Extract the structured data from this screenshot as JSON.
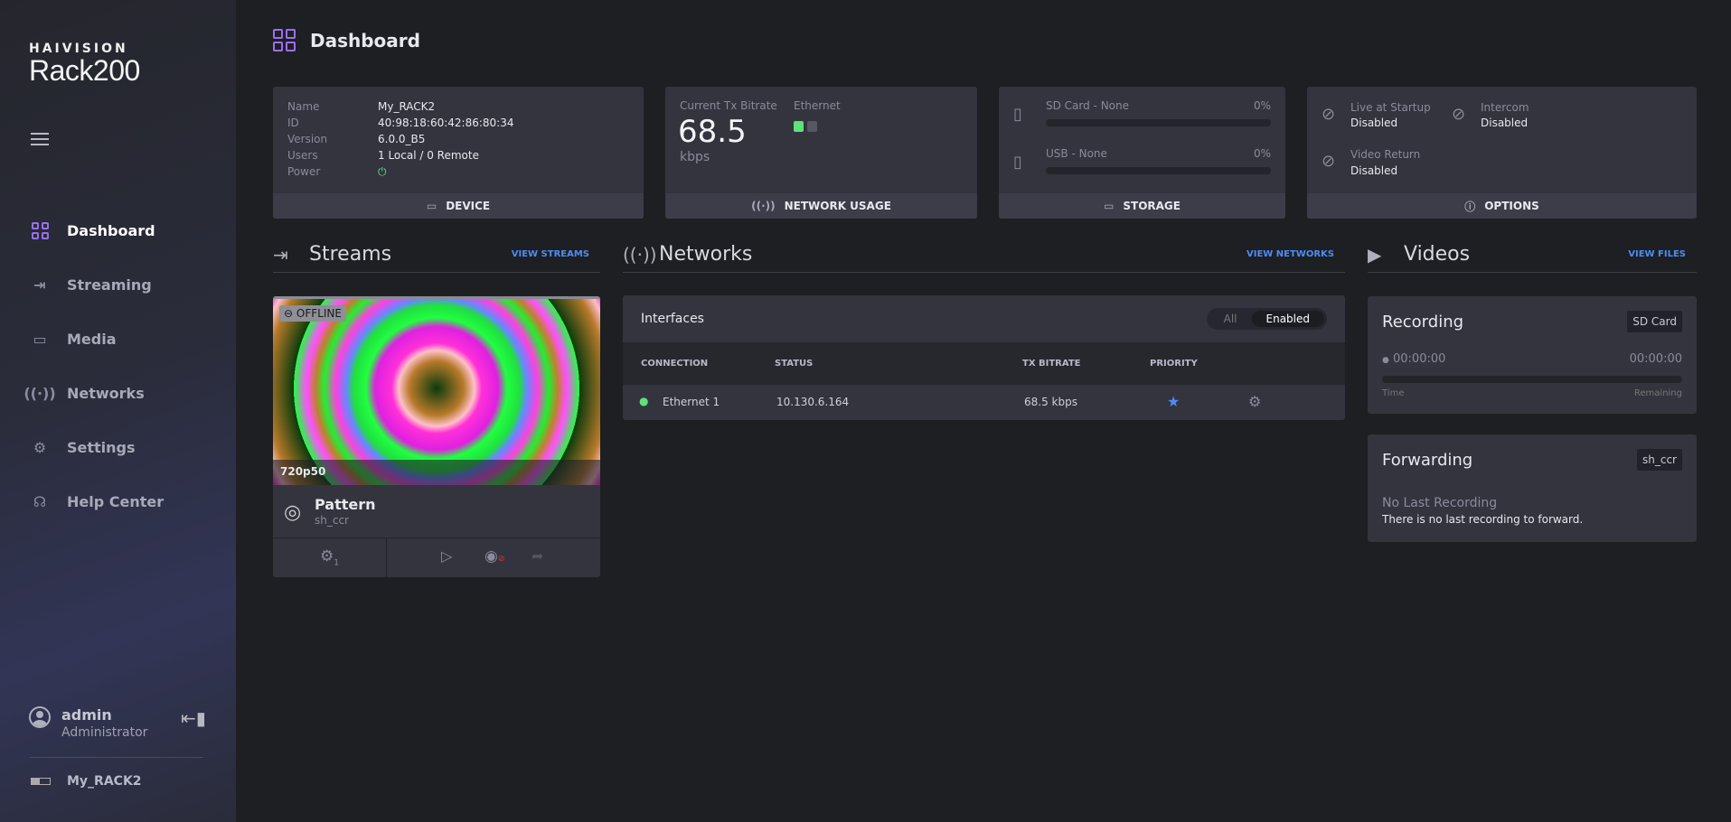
{
  "brand": {
    "company": "HAIVISION",
    "product": "Rack200"
  },
  "sidebar": {
    "items": [
      {
        "label": "Dashboard",
        "icon": "dashboard-icon",
        "active": true
      },
      {
        "label": "Streaming",
        "icon": "streaming-icon"
      },
      {
        "label": "Media",
        "icon": "media-icon"
      },
      {
        "label": "Networks",
        "icon": "antenna-icon"
      },
      {
        "label": "Settings",
        "icon": "gear-icon"
      },
      {
        "label": "Help Center",
        "icon": "headset-icon"
      }
    ],
    "user": {
      "name": "admin",
      "role": "Administrator"
    },
    "device": "My_RACK2"
  },
  "page": {
    "title": "Dashboard"
  },
  "device_card": {
    "footer": "DEVICE",
    "rows": [
      {
        "k": "Name",
        "v": "My_RACK2"
      },
      {
        "k": "ID",
        "v": "40:98:18:60:42:86:80:34"
      },
      {
        "k": "Version",
        "v": "6.0.0_B5"
      },
      {
        "k": "Users",
        "v": "1 Local / 0 Remote"
      },
      {
        "k": "Power",
        "v": ""
      }
    ],
    "power_color": "#5ee07a"
  },
  "network_card": {
    "footer": "NETWORK USAGE",
    "bitrate_label": "Current Tx Bitrate",
    "bitrate": "68.5",
    "unit": "kbps",
    "ethernet_label": "Ethernet",
    "ethernet_links": [
      "#5ee07a",
      "#555763"
    ]
  },
  "storage_card": {
    "footer": "STORAGE",
    "items": [
      {
        "label": "SD Card - None",
        "pct": "0%",
        "fill": 0
      },
      {
        "label": "USB - None",
        "pct": "0%",
        "fill": 0
      }
    ]
  },
  "options_card": {
    "footer": "OPTIONS",
    "items": [
      {
        "label": "Live at Startup",
        "value": "Disabled"
      },
      {
        "label": "Intercom",
        "value": "Disabled"
      },
      {
        "label": "Video Return",
        "value": "Disabled"
      }
    ]
  },
  "streams": {
    "title": "Streams",
    "link": "VIEW STREAMS",
    "card": {
      "status": "OFFLINE",
      "resolution": "720p50",
      "name": "Pattern",
      "sub": "sh_ccr",
      "settings_count": "1"
    }
  },
  "networks": {
    "title": "Networks",
    "link": "VIEW NETWORKS",
    "interfaces": {
      "title": "Interfaces",
      "filters": [
        "All",
        "Enabled"
      ],
      "active_filter": "Enabled",
      "columns": [
        "CONNECTION",
        "STATUS",
        "TX BITRATE",
        "PRIORITY"
      ],
      "rows": [
        {
          "connection": "Ethernet 1",
          "status": "10.130.6.164",
          "bitrate": "68.5 kbps",
          "priority": true
        }
      ]
    }
  },
  "videos": {
    "title": "Videos",
    "link": "VIEW FILES",
    "recording": {
      "title": "Recording",
      "target": "SD Card",
      "time": "00:00:00",
      "remaining": "00:00:00",
      "time_label": "Time",
      "remaining_label": "Remaining",
      "progress": 0
    },
    "forwarding": {
      "title": "Forwarding",
      "stream": "sh_ccr",
      "status": "No Last Recording",
      "message": "There is no last recording to forward."
    }
  },
  "colors": {
    "accent": "#9a6ff0",
    "link": "#4d8cf5",
    "card": "#33343e",
    "background": "#1e1f22"
  }
}
